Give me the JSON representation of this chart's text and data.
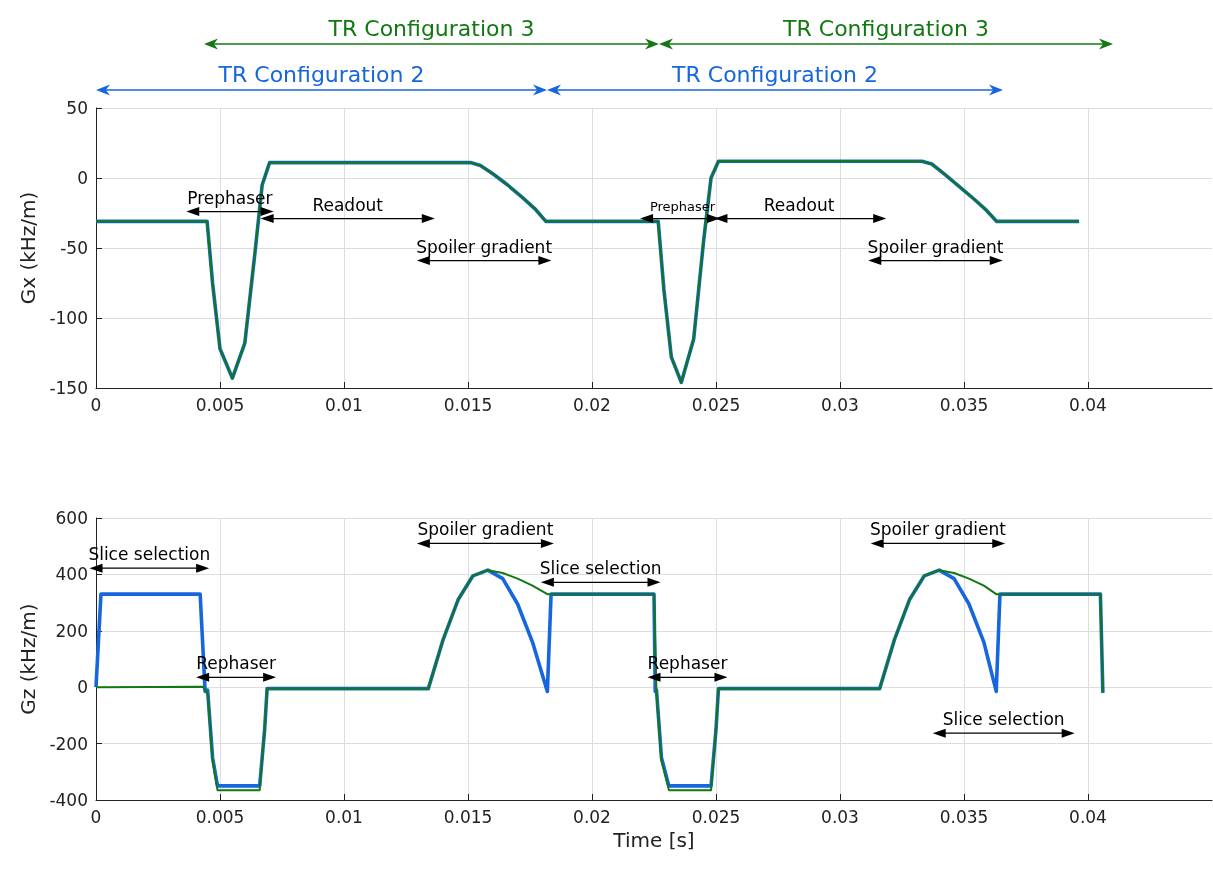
{
  "chart_data": [
    {
      "type": "line",
      "ylabel": "Gx (kHz/m)",
      "xlim": [
        0,
        0.045
      ],
      "xticks": [
        0,
        0.005,
        0.01,
        0.015,
        0.02,
        0.025,
        0.03,
        0.035,
        0.04
      ],
      "ylim": [
        -150,
        50
      ],
      "yticks": [
        -150,
        -100,
        -50,
        0,
        50
      ],
      "grid": true,
      "marker": "none",
      "series": [
        {
          "color": "#1666dd",
          "x": [
            0,
            0.00448,
            0.0047,
            0.005,
            0.0055,
            0.006,
            0.0064,
            0.0067,
            0.007,
            0.0151,
            0.0155,
            0.016,
            0.0166,
            0.0172,
            0.0177,
            0.01814,
            0.02267,
            0.0229,
            0.0232,
            0.0236,
            0.0241,
            0.0245,
            0.0248,
            0.0251,
            0.0333,
            0.0337,
            0.0342,
            0.0348,
            0.0354,
            0.0359,
            0.03632,
            0.03964
          ],
          "values": [
            -31,
            -31,
            -75,
            -122,
            -143,
            -118,
            -55,
            -5,
            11,
            11,
            9,
            3,
            -5,
            -14,
            -22,
            -31,
            -31,
            -80,
            -128,
            -146,
            -115,
            -45,
            0,
            12,
            12,
            10,
            3,
            -6,
            -15,
            -23,
            -31,
            -31
          ]
        },
        {
          "color": "#127812",
          "x": [
            0,
            0.00448,
            0.0047,
            0.005,
            0.0055,
            0.006,
            0.0064,
            0.0067,
            0.007,
            0.0151,
            0.0155,
            0.016,
            0.0166,
            0.0172,
            0.0177,
            0.01814,
            0.02267,
            0.0229,
            0.0232,
            0.0236,
            0.0241,
            0.0245,
            0.0248,
            0.0251,
            0.0333,
            0.0337,
            0.0342,
            0.0348,
            0.0354,
            0.0359,
            0.03632,
            0.03964
          ],
          "values": [
            -31,
            -31,
            -75,
            -122,
            -143,
            -118,
            -55,
            -5,
            11,
            11,
            9,
            3,
            -5,
            -14,
            -22,
            -31,
            -31,
            -80,
            -128,
            -146,
            -115,
            -45,
            0,
            12,
            12,
            10,
            3,
            -6,
            -15,
            -23,
            -31,
            -31
          ]
        },
        {
          "color": "#000000",
          "marker": "triangle",
          "x": [
            0.0039,
            0.0069
          ],
          "values": [
            -24,
            -24
          ]
        },
        {
          "color": "#000000",
          "marker": "triangle",
          "x": [
            0.0069,
            0.0134
          ],
          "values": [
            -29,
            -29
          ]
        },
        {
          "color": "#000000",
          "marker": "triangle",
          "x": [
            0.0132,
            0.0181
          ],
          "values": [
            -59,
            -59
          ]
        },
        {
          "color": "#000000",
          "marker": "triangle",
          "x": [
            0.0222,
            0.0249
          ],
          "values": [
            -29,
            -29
          ]
        },
        {
          "color": "#000000",
          "marker": "triangle",
          "x": [
            0.0252,
            0.0316
          ],
          "values": [
            -29,
            -29
          ]
        },
        {
          "color": "#000000",
          "marker": "triangle",
          "x": [
            0.0314,
            0.0363
          ],
          "values": [
            -59,
            -59
          ]
        }
      ],
      "annotations": [
        "TR Configuration 2",
        "TR Configuration 2",
        "TR Configuration 3",
        "TR Configuration 3",
        {
          "text": "Prephaser",
          "x": 0.0054,
          "y": -24
        },
        {
          "text": "Readout",
          "x": 0.01015,
          "y": -29
        },
        {
          "text": "Spoiler gradient",
          "x": 0.01565,
          "y": -59
        },
        {
          "text": "Prephaser",
          "x": 0.02365,
          "y": -29
        },
        {
          "text": "Readout",
          "x": 0.02835,
          "y": -29
        },
        {
          "text": "Spoiler gradient",
          "x": 0.03385,
          "y": -59
        }
      ]
    },
    {
      "type": "line",
      "xlabel": "Time [s]",
      "ylabel": "Gz (kHz/m)",
      "xlim": [
        0,
        0.045
      ],
      "xticks": [
        0,
        0.005,
        0.01,
        0.015,
        0.02,
        0.025,
        0.03,
        0.035,
        0.04
      ],
      "ylim": [
        -400,
        600
      ],
      "yticks": [
        -400,
        -200,
        0,
        200,
        400,
        600
      ],
      "grid": true,
      "marker": "none",
      "series": [
        {
          "color": "#1666dd",
          "x": [
            0,
            0.0002,
            0.0042,
            0.0044,
            0.0045,
            0.0047,
            0.0049,
            0.0066,
            0.0068,
            0.0069,
            0.0134,
            0.014,
            0.0146,
            0.0152,
            0.0158,
            0.0164,
            0.017,
            0.0176,
            0.0182,
            0.01835,
            0.0225,
            0.02255,
            0.0226,
            0.0228,
            0.0231,
            0.0248,
            0.025,
            0.0251,
            0.0316,
            0.0322,
            0.0328,
            0.0334,
            0.034,
            0.0346,
            0.0352,
            0.0358,
            0.0363,
            0.03645,
            0.0405,
            0.0406
          ],
          "values": [
            0,
            330,
            330,
            -15,
            -10,
            -250,
            -350,
            -350,
            -150,
            -5,
            -5,
            170,
            310,
            395,
            415,
            385,
            295,
            160,
            -15,
            330,
            330,
            -15,
            -10,
            -250,
            -350,
            -350,
            -150,
            -5,
            -5,
            170,
            310,
            395,
            415,
            385,
            295,
            160,
            -15,
            330,
            330,
            -20
          ]
        },
        {
          "color": "#127812",
          "x": [
            0,
            0.0043,
            0.0045,
            0.0047,
            0.0049,
            0.0066,
            0.0068,
            0.0069,
            0.0134,
            0.014,
            0.0146,
            0.0152,
            0.0158,
            0.0164,
            0.017,
            0.0176,
            0.0182,
            0.0225,
            0.0226,
            0.0228,
            0.0231,
            0.0248,
            0.025,
            0.0251,
            0.0316,
            0.0322,
            0.0328,
            0.0334,
            0.034,
            0.0346,
            0.0352,
            0.0358,
            0.0363,
            0.0405,
            0.0406
          ],
          "values": [
            0,
            2,
            -20,
            -260,
            -365,
            -365,
            -150,
            -5,
            -5,
            170,
            310,
            395,
            415,
            405,
            385,
            360,
            330,
            330,
            -20,
            -260,
            -365,
            -365,
            -150,
            -5,
            -5,
            170,
            310,
            395,
            415,
            405,
            385,
            360,
            330,
            330,
            -20
          ]
        },
        {
          "color": "#000000",
          "marker": "triangle",
          "x": [
            0,
            0.0043
          ],
          "values": [
            422,
            422
          ]
        },
        {
          "color": "#000000",
          "marker": "triangle",
          "x": [
            0.0043,
            0.007
          ],
          "values": [
            35,
            35
          ]
        },
        {
          "color": "#000000",
          "marker": "triangle",
          "x": [
            0.0132,
            0.0182
          ],
          "values": [
            510,
            510
          ]
        },
        {
          "color": "#000000",
          "marker": "triangle",
          "x": [
            0.0182,
            0.0225
          ],
          "values": [
            372,
            372
          ]
        },
        {
          "color": "#000000",
          "marker": "triangle",
          "x": [
            0.0225,
            0.0252
          ],
          "values": [
            35,
            35
          ]
        },
        {
          "color": "#000000",
          "marker": "triangle",
          "x": [
            0.0315,
            0.0364
          ],
          "values": [
            510,
            510
          ]
        },
        {
          "color": "#000000",
          "marker": "triangle",
          "x": [
            0.034,
            0.0392
          ],
          "values": [
            -163,
            -163
          ]
        }
      ],
      "annotations": [
        {
          "text": "Slice selection",
          "x": 0.00215,
          "y": 422
        },
        {
          "text": "Rephaser",
          "x": 0.00565,
          "y": 35
        },
        {
          "text": "Spoiler gradient",
          "x": 0.0157,
          "y": 510
        },
        {
          "text": "Slice selection",
          "x": 0.02035,
          "y": 372
        },
        {
          "text": "Rephaser",
          "x": 0.02385,
          "y": 35
        },
        {
          "text": "Spoiler gradient",
          "x": 0.03395,
          "y": 510
        },
        {
          "text": "Slice selection",
          "x": 0.0366,
          "y": -163
        }
      ]
    }
  ]
}
